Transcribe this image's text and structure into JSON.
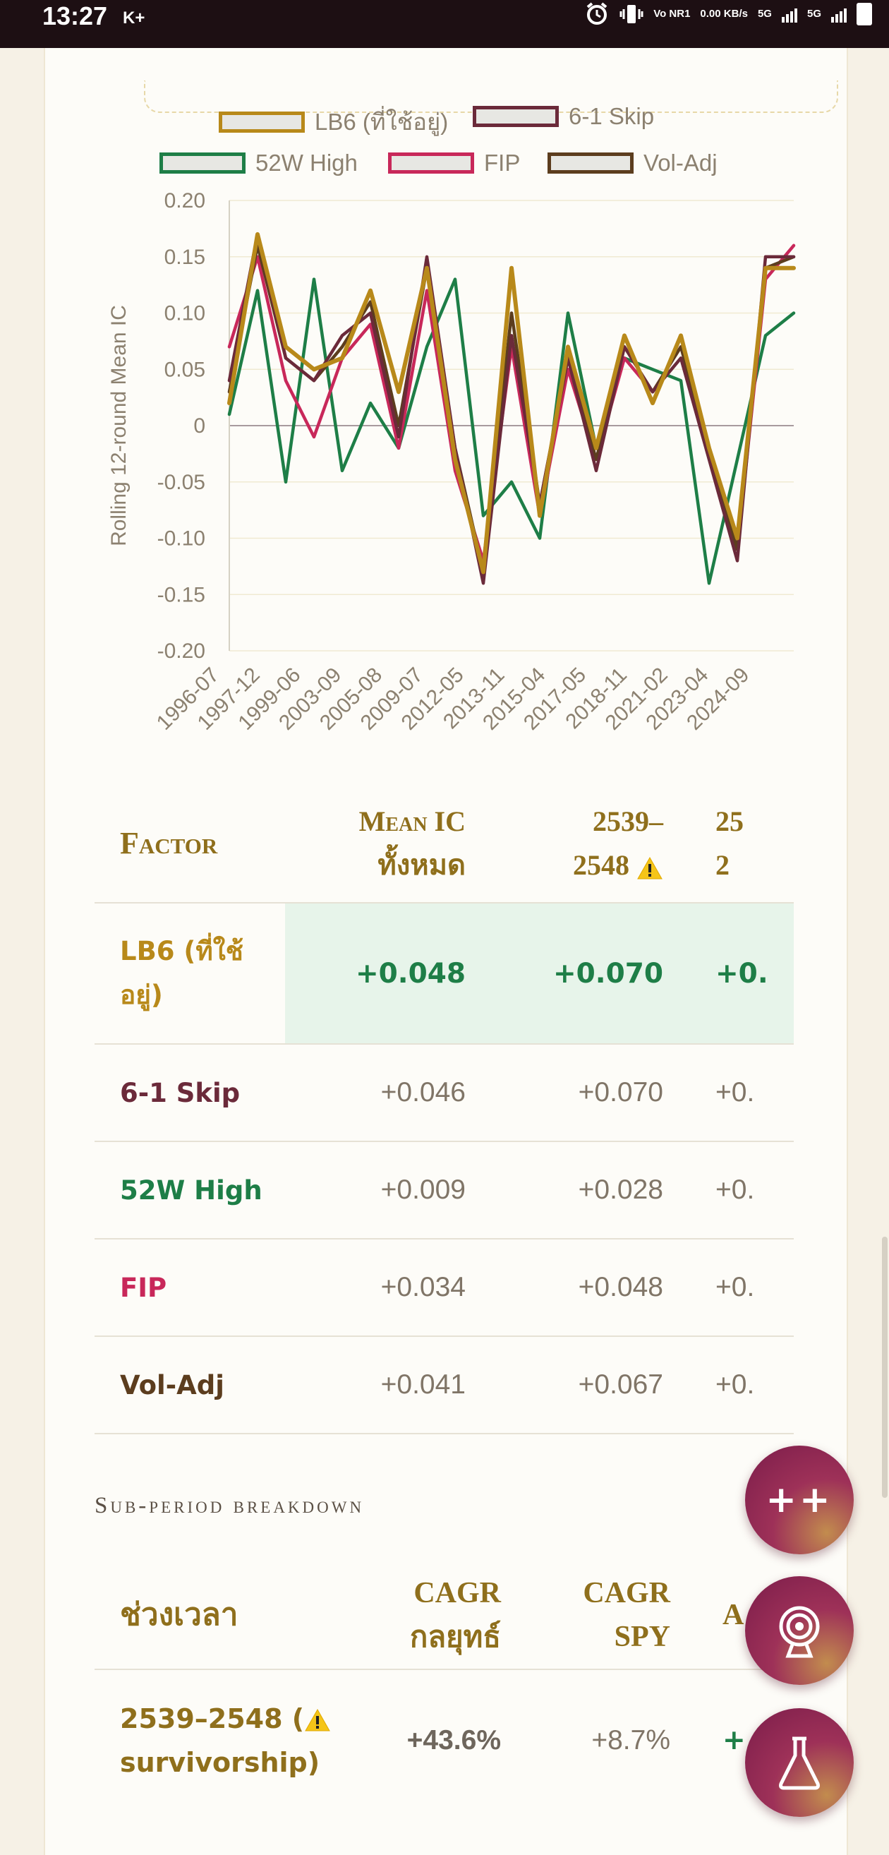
{
  "status_bar": {
    "time": "13:27",
    "carrier": "K+",
    "volte": "Vo NR1",
    "net_speed": "0.00 KB/s",
    "net1": "5G",
    "net2": "5G"
  },
  "legend": [
    {
      "label": "LB6 (ที่ใช้อยู่)",
      "color": "#b8891a"
    },
    {
      "label": "6-1 Skip",
      "color": "#6b2a3a"
    },
    {
      "label": "52W High",
      "color": "#1e7e47"
    },
    {
      "label": "FIP",
      "color": "#c8285a"
    },
    {
      "label": "Vol-Adj",
      "color": "#5c3d1e"
    }
  ],
  "chart_data": {
    "type": "line",
    "ylabel": "Rolling 12-round Mean IC",
    "xlabel": "",
    "ylim": [
      -0.2,
      0.2
    ],
    "yticks": [
      0.2,
      0.15,
      0.1,
      0.05,
      0,
      -0.05,
      -0.1,
      -0.15,
      -0.2
    ],
    "ytick_labels": [
      "0.20",
      "0.15",
      "0.10",
      "0.05",
      "0",
      "-0.05",
      "-0.10",
      "-0.15",
      "-0.20"
    ],
    "x_tick_labels": [
      "1996-07",
      "1997-12",
      "1999-06",
      "2003-09",
      "2005-08",
      "2009-07",
      "2012-05",
      "2013-11",
      "2015-04",
      "2017-05",
      "2018-11",
      "2021-02",
      "2023-04",
      "2024-09"
    ],
    "grid": true,
    "legend_position": "top",
    "x": [
      0,
      5,
      10,
      15,
      20,
      25,
      30,
      35,
      40,
      45,
      50,
      55,
      60,
      65,
      70,
      75,
      80,
      85,
      90,
      95,
      100
    ],
    "series": [
      {
        "name": "LB6 (ที่ใช้อยู่)",
        "values": [
          0.02,
          0.17,
          0.07,
          0.05,
          0.06,
          0.12,
          0.03,
          0.14,
          -0.03,
          -0.13,
          0.14,
          -0.08,
          0.07,
          -0.02,
          0.08,
          0.02,
          0.08,
          -0.02,
          -0.1,
          0.14,
          0.14
        ]
      },
      {
        "name": "6-1 Skip",
        "values": [
          0.04,
          0.17,
          0.06,
          0.04,
          0.08,
          0.1,
          -0.01,
          0.15,
          -0.02,
          -0.14,
          0.08,
          -0.07,
          0.06,
          -0.04,
          0.07,
          0.03,
          0.06,
          -0.03,
          -0.12,
          0.15,
          0.15
        ]
      },
      {
        "name": "52W High",
        "values": [
          0.01,
          0.12,
          -0.05,
          0.13,
          -0.04,
          0.02,
          -0.02,
          0.07,
          0.13,
          -0.08,
          -0.05,
          -0.1,
          0.1,
          -0.02,
          0.06,
          0.05,
          0.04,
          -0.14,
          -0.03,
          0.08,
          0.1
        ]
      },
      {
        "name": "FIP",
        "values": [
          0.07,
          0.15,
          0.04,
          -0.01,
          0.06,
          0.09,
          -0.02,
          0.12,
          -0.04,
          -0.12,
          0.07,
          -0.08,
          0.05,
          -0.03,
          0.06,
          0.03,
          0.07,
          -0.02,
          -0.11,
          0.13,
          0.16
        ]
      },
      {
        "name": "Vol-Adj",
        "values": [
          0.03,
          0.16,
          0.06,
          0.04,
          0.07,
          0.11,
          0.0,
          0.14,
          -0.02,
          -0.13,
          0.1,
          -0.07,
          0.06,
          -0.03,
          0.07,
          0.03,
          0.07,
          -0.02,
          -0.11,
          0.14,
          0.15
        ]
      }
    ]
  },
  "table1": {
    "headers": [
      "Factor",
      "Mean IC",
      "ทั้งหมด",
      "2539–",
      "2548",
      "25",
      "2"
    ],
    "rows": [
      {
        "factor": "LB6 (ที่ใช้",
        "factor2": "อยู่)",
        "mean_ic": "+0.048",
        "p1": "+0.070",
        "p2": "+0.",
        "color": "#b8891a",
        "highlight": true
      },
      {
        "factor": "6-1 Skip",
        "mean_ic": "+0.046",
        "p1": "+0.070",
        "p2": "+0.",
        "color": "#6b2a3a"
      },
      {
        "factor": "52W High",
        "mean_ic": "+0.009",
        "p1": "+0.028",
        "p2": "+0.",
        "color": "#1e7e47"
      },
      {
        "factor": "FIP",
        "mean_ic": "+0.034",
        "p1": "+0.048",
        "p2": "+0.",
        "color": "#c8285a"
      },
      {
        "factor": "Vol-Adj",
        "mean_ic": "+0.041",
        "p1": "+0.067",
        "p2": "+0.",
        "color": "#5c3d1e"
      }
    ]
  },
  "subperiod": {
    "title": "Sub-period breakdown",
    "headers": [
      "ช่วงเวลา",
      "CAGR",
      "กลยุทธ์",
      "CAGR",
      "SPY",
      "A"
    ],
    "row": {
      "period1": "2539–2548 (",
      "period2": "survivorship)",
      "cagr_strategy": "+43.6%",
      "cagr_spy": "+8.7%",
      "extra": "+"
    }
  },
  "fabs": [
    {
      "name": "compare",
      "label": "++"
    },
    {
      "name": "target"
    },
    {
      "name": "lab"
    }
  ]
}
